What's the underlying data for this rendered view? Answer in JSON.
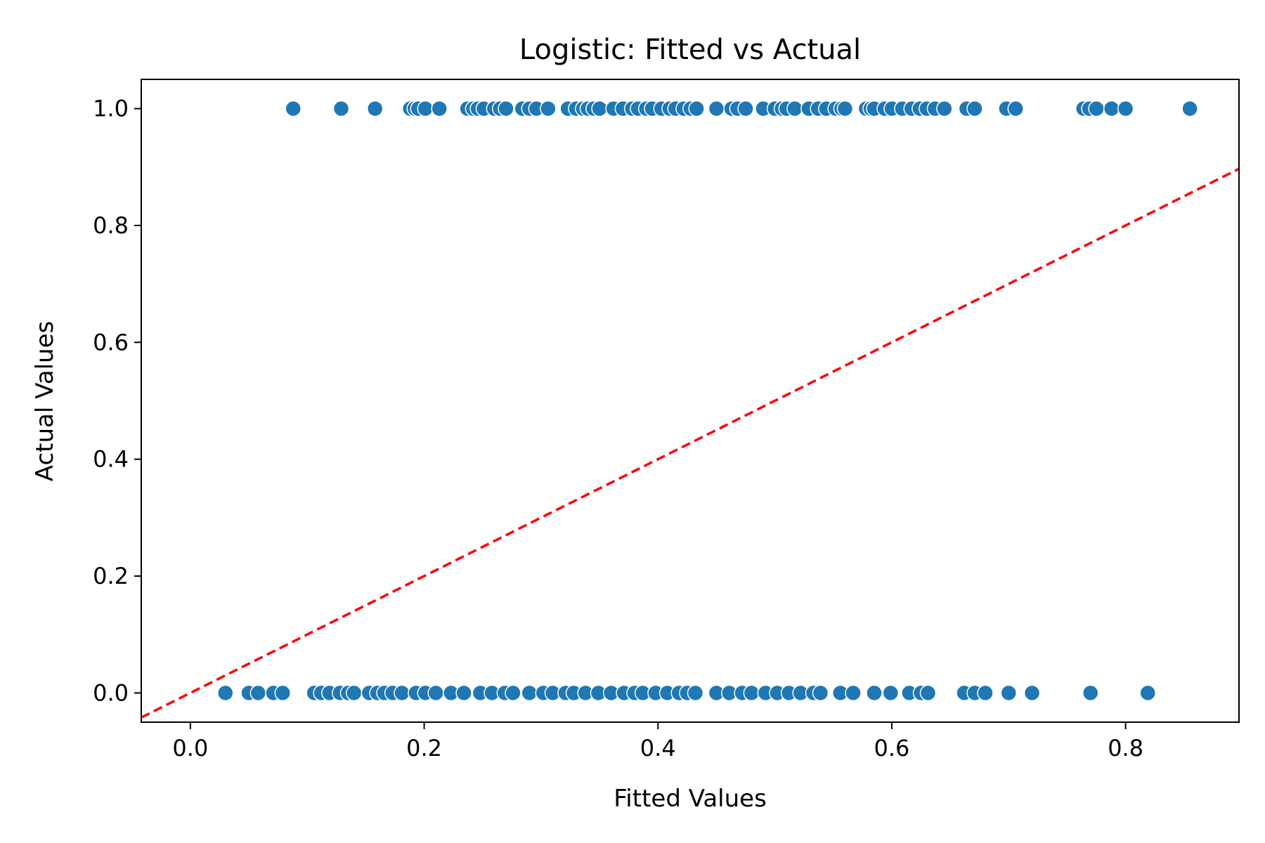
{
  "chart_data": {
    "type": "scatter",
    "title": "Logistic: Fitted vs Actual",
    "xlabel": "Fitted Values",
    "ylabel": "Actual Values",
    "xlim": [
      -0.042,
      0.897
    ],
    "ylim": [
      -0.05,
      1.05
    ],
    "xticks": [
      0.0,
      0.2,
      0.4,
      0.6,
      0.8
    ],
    "yticks": [
      0.0,
      0.2,
      0.4,
      0.6,
      0.8,
      1.0
    ],
    "xtick_labels": [
      "0.0",
      "0.2",
      "0.4",
      "0.6",
      "0.8"
    ],
    "ytick_labels": [
      "0.0",
      "0.2",
      "0.4",
      "0.6",
      "0.8",
      "1.0"
    ],
    "grid": false,
    "legend": "none",
    "point_color": "#1f77b4",
    "point_edge_color": "#ffffff",
    "series": [
      {
        "type": "scatter",
        "x": [
          0.088,
          0.129,
          0.158,
          0.188,
          0.192,
          0.195,
          0.201,
          0.213,
          0.237,
          0.242,
          0.246,
          0.251,
          0.26,
          0.265,
          0.27,
          0.284,
          0.29,
          0.296,
          0.306,
          0.323,
          0.33,
          0.336,
          0.34,
          0.345,
          0.35,
          0.362,
          0.37,
          0.378,
          0.383,
          0.39,
          0.395,
          0.403,
          0.41,
          0.415,
          0.422,
          0.428,
          0.433,
          0.45,
          0.463,
          0.468,
          0.475,
          0.49,
          0.5,
          0.506,
          0.51,
          0.517,
          0.529,
          0.537,
          0.544,
          0.552,
          0.557,
          0.56,
          0.578,
          0.582,
          0.585,
          0.594,
          0.6,
          0.609,
          0.617,
          0.624,
          0.63,
          0.637,
          0.645,
          0.664,
          0.671,
          0.698,
          0.706,
          0.764,
          0.769,
          0.775,
          0.788,
          0.8,
          0.855
        ],
        "y": [
          1,
          1,
          1,
          1,
          1,
          1,
          1,
          1,
          1,
          1,
          1,
          1,
          1,
          1,
          1,
          1,
          1,
          1,
          1,
          1,
          1,
          1,
          1,
          1,
          1,
          1,
          1,
          1,
          1,
          1,
          1,
          1,
          1,
          1,
          1,
          1,
          1,
          1,
          1,
          1,
          1,
          1,
          1,
          1,
          1,
          1,
          1,
          1,
          1,
          1,
          1,
          1,
          1,
          1,
          1,
          1,
          1,
          1,
          1,
          1,
          1,
          1,
          1,
          1,
          1,
          1,
          1,
          1,
          1,
          1,
          1,
          1,
          1
        ]
      },
      {
        "type": "scatter",
        "x": [
          0.03,
          0.05,
          0.058,
          0.071,
          0.079,
          0.106,
          0.112,
          0.119,
          0.128,
          0.135,
          0.14,
          0.153,
          0.16,
          0.166,
          0.173,
          0.181,
          0.193,
          0.201,
          0.21,
          0.223,
          0.234,
          0.248,
          0.258,
          0.269,
          0.276,
          0.29,
          0.302,
          0.31,
          0.321,
          0.328,
          0.338,
          0.349,
          0.36,
          0.371,
          0.38,
          0.387,
          0.398,
          0.408,
          0.418,
          0.425,
          0.432,
          0.45,
          0.461,
          0.472,
          0.48,
          0.492,
          0.502,
          0.512,
          0.522,
          0.533,
          0.539,
          0.556,
          0.567,
          0.585,
          0.599,
          0.615,
          0.625,
          0.631,
          0.662,
          0.671,
          0.68,
          0.7,
          0.72,
          0.77,
          0.819
        ],
        "y": [
          0,
          0,
          0,
          0,
          0,
          0,
          0,
          0,
          0,
          0,
          0,
          0,
          0,
          0,
          0,
          0,
          0,
          0,
          0,
          0,
          0,
          0,
          0,
          0,
          0,
          0,
          0,
          0,
          0,
          0,
          0,
          0,
          0,
          0,
          0,
          0,
          0,
          0,
          0,
          0,
          0,
          0,
          0,
          0,
          0,
          0,
          0,
          0,
          0,
          0,
          0,
          0,
          0,
          0,
          0,
          0,
          0,
          0,
          0,
          0,
          0,
          0,
          0,
          0,
          0
        ]
      },
      {
        "type": "line",
        "style": "dashed",
        "color": "#ff0000",
        "x": [
          -0.042,
          0.897
        ],
        "y": [
          -0.042,
          0.897
        ]
      }
    ]
  }
}
